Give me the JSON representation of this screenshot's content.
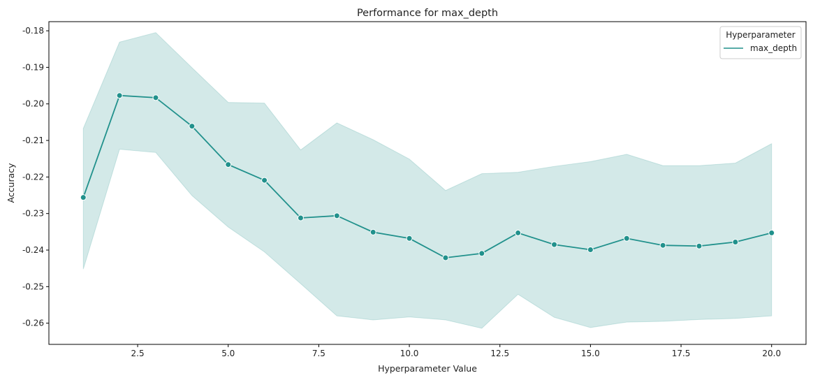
{
  "chart_data": {
    "type": "line",
    "title": "Performance for max_depth",
    "xlabel": "Hyperparameter Value",
    "ylabel": "Accuracy",
    "xlim": [
      0.05,
      20.95
    ],
    "ylim": [
      -0.2658,
      -0.1775
    ],
    "x_ticks": [
      2.5,
      5.0,
      7.5,
      10.0,
      12.5,
      15.0,
      17.5,
      20.0
    ],
    "x_tick_labels": [
      "2.5",
      "5.0",
      "7.5",
      "10.0",
      "12.5",
      "15.0",
      "17.5",
      "20.0"
    ],
    "y_ticks": [
      -0.26,
      -0.25,
      -0.24,
      -0.23,
      -0.22,
      -0.21,
      -0.2,
      -0.19,
      -0.18
    ],
    "y_tick_labels": [
      "-0.26",
      "-0.25",
      "-0.24",
      "-0.23",
      "-0.22",
      "-0.21",
      "-0.20",
      "-0.19",
      "-0.18"
    ],
    "grid": false,
    "legend": {
      "title": "Hyperparameter",
      "placement": "top-right"
    },
    "series": [
      {
        "name": "max_depth",
        "color": "#21918c",
        "band_color": "#21918c",
        "x": [
          1,
          2,
          3,
          4,
          5,
          6,
          7,
          8,
          9,
          10,
          11,
          12,
          13,
          14,
          15,
          16,
          17,
          18,
          19,
          20
        ],
        "y": [
          -0.2256,
          -0.1977,
          -0.1983,
          -0.2061,
          -0.2166,
          -0.2209,
          -0.2312,
          -0.2306,
          -0.2351,
          -0.2368,
          -0.2421,
          -0.2409,
          -0.2353,
          -0.2385,
          -0.2399,
          -0.2368,
          -0.2387,
          -0.2389,
          -0.2378,
          -0.2353
        ],
        "lower": [
          -0.2452,
          -0.2124,
          -0.2133,
          -0.2251,
          -0.2337,
          -0.2405,
          -0.2492,
          -0.258,
          -0.2591,
          -0.2583,
          -0.2591,
          -0.2614,
          -0.2521,
          -0.2584,
          -0.2612,
          -0.2597,
          -0.2595,
          -0.259,
          -0.2587,
          -0.258
        ],
        "upper": [
          -0.2067,
          -0.1831,
          -0.1805,
          -0.1901,
          -0.1996,
          -0.1998,
          -0.2126,
          -0.2052,
          -0.2098,
          -0.2151,
          -0.2237,
          -0.2191,
          -0.2187,
          -0.2171,
          -0.2158,
          -0.2138,
          -0.2169,
          -0.2169,
          -0.2162,
          -0.2109
        ]
      }
    ]
  }
}
